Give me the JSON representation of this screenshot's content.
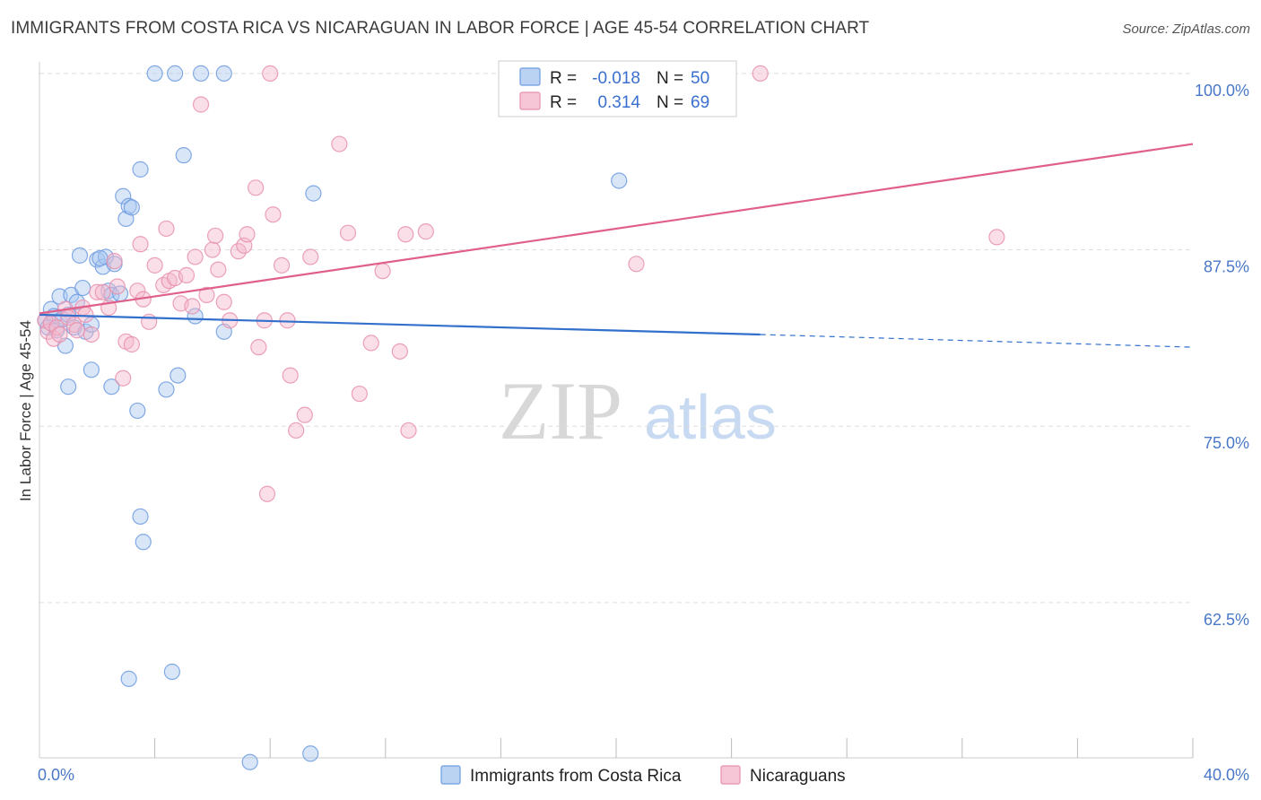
{
  "title": "IMMIGRANTS FROM COSTA RICA VS NICARAGUAN IN LABOR FORCE | AGE 45-54 CORRELATION CHART",
  "source": "Source: ZipAtlas.com",
  "watermark": {
    "zip": "ZIP",
    "atlas": "atlas"
  },
  "legend": {
    "r_label": "R =",
    "n_label": "N =",
    "entries": [
      {
        "r": "-0.018",
        "n": "50"
      },
      {
        "r": "0.314",
        "n": "69"
      }
    ]
  },
  "bottom_legend": [
    "Immigrants from Costa Rica",
    "Nicaraguans"
  ],
  "colors": {
    "blue_fill": "#a9c8f0",
    "blue_stroke": "#6e9be0",
    "blue_line": "#3270cc",
    "pink_fill": "#f5b8cc",
    "pink_stroke": "#e890ae",
    "pink_line": "#e0608a",
    "grid": "#dddddd",
    "tick_text": "#4a78c8"
  },
  "chart_data": {
    "type": "scatter",
    "title": "IMMIGRANTS FROM COSTA RICA VS NICARAGUAN IN LABOR FORCE | AGE 45-54 CORRELATION CHART",
    "xlabel": "",
    "ylabel": "In Labor Force | Age 45-54",
    "xlim": [
      0,
      40
    ],
    "ylim": [
      51.5,
      101.2
    ],
    "x_tick_labels": [
      {
        "value": 0,
        "label": "0.0%"
      },
      {
        "value": 40,
        "label": "40.0%"
      }
    ],
    "y_tick_labels": [
      {
        "value": 100,
        "label": "100.0%"
      },
      {
        "value": 87.5,
        "label": "87.5%"
      },
      {
        "value": 75,
        "label": "75.0%"
      },
      {
        "value": 62.5,
        "label": "62.5%"
      }
    ],
    "x_minor_ticks": [
      4,
      8,
      12,
      16,
      20,
      24,
      28,
      32,
      36,
      40
    ],
    "grid": true,
    "legend_position": "top-center",
    "series": [
      {
        "name": "Immigrants from Costa Rica",
        "r": -0.018,
        "n": 50,
        "trend": {
          "x0": 0,
          "y0": 82.9,
          "x1": 25,
          "y1": 81.5,
          "dash_to_x": 40,
          "dash_to_y": 80.6
        },
        "points": [
          [
            0.2,
            82.5
          ],
          [
            0.4,
            83.3
          ],
          [
            0.5,
            82.8
          ],
          [
            0.3,
            82.0
          ],
          [
            0.6,
            81.8
          ],
          [
            0.8,
            82.6
          ],
          [
            0.7,
            84.2
          ],
          [
            0.9,
            80.7
          ],
          [
            1.0,
            82.9
          ],
          [
            1.1,
            84.3
          ],
          [
            1.2,
            82.0
          ],
          [
            1.3,
            83.8
          ],
          [
            1.4,
            87.1
          ],
          [
            1.5,
            84.8
          ],
          [
            1.6,
            81.7
          ],
          [
            1.8,
            82.2
          ],
          [
            2.0,
            86.8
          ],
          [
            2.2,
            86.3
          ],
          [
            2.3,
            87.0
          ],
          [
            2.4,
            84.6
          ],
          [
            2.5,
            84.3
          ],
          [
            2.6,
            86.5
          ],
          [
            2.8,
            84.4
          ],
          [
            2.9,
            91.3
          ],
          [
            3.0,
            89.7
          ],
          [
            3.1,
            90.6
          ],
          [
            3.2,
            90.5
          ],
          [
            3.5,
            93.2
          ],
          [
            3.4,
            76.1
          ],
          [
            3.5,
            68.6
          ],
          [
            3.6,
            66.8
          ],
          [
            3.1,
            57.1
          ],
          [
            4.0,
            100.0
          ],
          [
            4.7,
            100.0
          ],
          [
            5.6,
            100.0
          ],
          [
            6.4,
            100.0
          ],
          [
            5.0,
            94.2
          ],
          [
            4.4,
            77.6
          ],
          [
            4.8,
            78.6
          ],
          [
            2.5,
            77.8
          ],
          [
            1.8,
            79.0
          ],
          [
            1.0,
            77.8
          ],
          [
            5.4,
            82.8
          ],
          [
            6.4,
            81.7
          ],
          [
            4.6,
            57.6
          ],
          [
            7.3,
            51.2
          ],
          [
            9.4,
            51.8
          ],
          [
            9.5,
            91.5
          ],
          [
            20.1,
            92.4
          ],
          [
            2.1,
            86.9
          ]
        ]
      },
      {
        "name": "Nicaraguans",
        "r": 0.314,
        "n": 69,
        "trend": {
          "x0": 0,
          "y0": 83.0,
          "x1": 40,
          "y1": 95.0
        },
        "points": [
          [
            0.2,
            82.5
          ],
          [
            0.3,
            81.7
          ],
          [
            0.4,
            82.3
          ],
          [
            0.5,
            81.2
          ],
          [
            0.6,
            82.0
          ],
          [
            0.7,
            81.5
          ],
          [
            0.9,
            83.3
          ],
          [
            1.0,
            82.7
          ],
          [
            1.2,
            82.2
          ],
          [
            1.3,
            81.8
          ],
          [
            1.5,
            83.4
          ],
          [
            1.6,
            82.9
          ],
          [
            1.8,
            81.5
          ],
          [
            2.0,
            84.5
          ],
          [
            2.2,
            84.5
          ],
          [
            2.4,
            83.4
          ],
          [
            2.6,
            86.7
          ],
          [
            2.7,
            84.9
          ],
          [
            2.9,
            78.4
          ],
          [
            3.0,
            81.0
          ],
          [
            3.2,
            80.8
          ],
          [
            3.4,
            84.6
          ],
          [
            3.5,
            87.9
          ],
          [
            3.6,
            84.0
          ],
          [
            3.8,
            82.4
          ],
          [
            4.0,
            86.4
          ],
          [
            4.3,
            85.0
          ],
          [
            4.4,
            89.0
          ],
          [
            4.5,
            85.3
          ],
          [
            4.7,
            85.5
          ],
          [
            4.9,
            83.7
          ],
          [
            5.1,
            85.7
          ],
          [
            5.3,
            83.5
          ],
          [
            5.4,
            87.0
          ],
          [
            5.6,
            97.8
          ],
          [
            5.8,
            84.3
          ],
          [
            6.0,
            87.5
          ],
          [
            6.1,
            88.5
          ],
          [
            6.2,
            86.1
          ],
          [
            6.4,
            83.8
          ],
          [
            6.6,
            82.5
          ],
          [
            6.9,
            87.4
          ],
          [
            7.1,
            87.8
          ],
          [
            7.2,
            88.6
          ],
          [
            7.5,
            91.9
          ],
          [
            7.6,
            80.6
          ],
          [
            7.8,
            82.5
          ],
          [
            8.0,
            100.0
          ],
          [
            8.1,
            90.0
          ],
          [
            8.4,
            86.4
          ],
          [
            8.6,
            82.5
          ],
          [
            8.7,
            78.6
          ],
          [
            8.9,
            74.7
          ],
          [
            9.2,
            75.8
          ],
          [
            9.4,
            87.0
          ],
          [
            7.9,
            70.2
          ],
          [
            10.4,
            95.0
          ],
          [
            10.7,
            88.7
          ],
          [
            11.1,
            77.3
          ],
          [
            11.5,
            80.9
          ],
          [
            11.9,
            86.0
          ],
          [
            12.5,
            80.3
          ],
          [
            12.7,
            88.6
          ],
          [
            12.8,
            74.7
          ],
          [
            13.4,
            88.8
          ],
          [
            19.4,
            100.0
          ],
          [
            20.7,
            86.5
          ],
          [
            25.0,
            100.0
          ],
          [
            33.2,
            88.4
          ]
        ]
      }
    ]
  }
}
